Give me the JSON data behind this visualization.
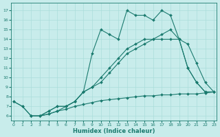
{
  "xlabel": "Humidex (Indice chaleur)",
  "xlim": [
    -0.3,
    23.3
  ],
  "ylim": [
    5.5,
    17.8
  ],
  "yticks": [
    6,
    7,
    8,
    9,
    10,
    11,
    12,
    13,
    14,
    15,
    16,
    17
  ],
  "xticks": [
    0,
    1,
    2,
    3,
    4,
    5,
    6,
    7,
    8,
    9,
    10,
    11,
    12,
    13,
    14,
    15,
    16,
    17,
    18,
    19,
    20,
    21,
    22,
    23
  ],
  "bg_color": "#c8eceb",
  "line_color": "#1a7a6e",
  "grid_color": "#aaddda",
  "series": [
    {
      "x": [
        0,
        1,
        2,
        3,
        4,
        5,
        6,
        7,
        8,
        9,
        10,
        11,
        12,
        13,
        14,
        15,
        16,
        17,
        18,
        19,
        20,
        21,
        22,
        23
      ],
      "y": [
        7.5,
        7.0,
        6.0,
        6.0,
        6.2,
        6.5,
        6.7,
        7.0,
        7.2,
        7.4,
        7.6,
        7.7,
        7.8,
        7.9,
        8.0,
        8.1,
        8.1,
        8.2,
        8.2,
        8.3,
        8.3,
        8.3,
        8.4,
        8.5
      ]
    },
    {
      "x": [
        2,
        3,
        4,
        5,
        6,
        7,
        8,
        9,
        10,
        11,
        12,
        13,
        14,
        15,
        16,
        17,
        18,
        19,
        20,
        21,
        22,
        23
      ],
      "y": [
        6.0,
        6.0,
        6.2,
        6.5,
        7.0,
        7.5,
        8.5,
        9.0,
        10.0,
        11.0,
        12.0,
        13.0,
        13.5,
        14.0,
        14.0,
        14.0,
        14.0,
        14.0,
        13.5,
        11.5,
        9.5,
        8.5
      ]
    },
    {
      "x": [
        2,
        3,
        4,
        5,
        6,
        7,
        8,
        9,
        10,
        11,
        12,
        13,
        14,
        15,
        16,
        17,
        18,
        19,
        20,
        21,
        22,
        23
      ],
      "y": [
        6.0,
        6.0,
        6.5,
        7.0,
        7.0,
        7.5,
        8.5,
        9.0,
        9.5,
        10.5,
        11.5,
        12.5,
        13.0,
        13.5,
        14.0,
        14.5,
        15.0,
        14.0,
        11.0,
        9.5,
        8.5,
        8.5
      ]
    },
    {
      "x": [
        0,
        1,
        2,
        3,
        4,
        5,
        6,
        7,
        8,
        9,
        10,
        11,
        12,
        13,
        14,
        15,
        16,
        17,
        18,
        19,
        20,
        21,
        22,
        23
      ],
      "y": [
        7.5,
        7.0,
        6.0,
        6.0,
        6.5,
        7.0,
        7.0,
        7.5,
        8.5,
        12.5,
        15.0,
        14.5,
        14.0,
        17.0,
        16.5,
        16.5,
        16.0,
        17.0,
        16.5,
        14.0,
        11.0,
        9.5,
        8.5,
        8.5
      ]
    }
  ]
}
